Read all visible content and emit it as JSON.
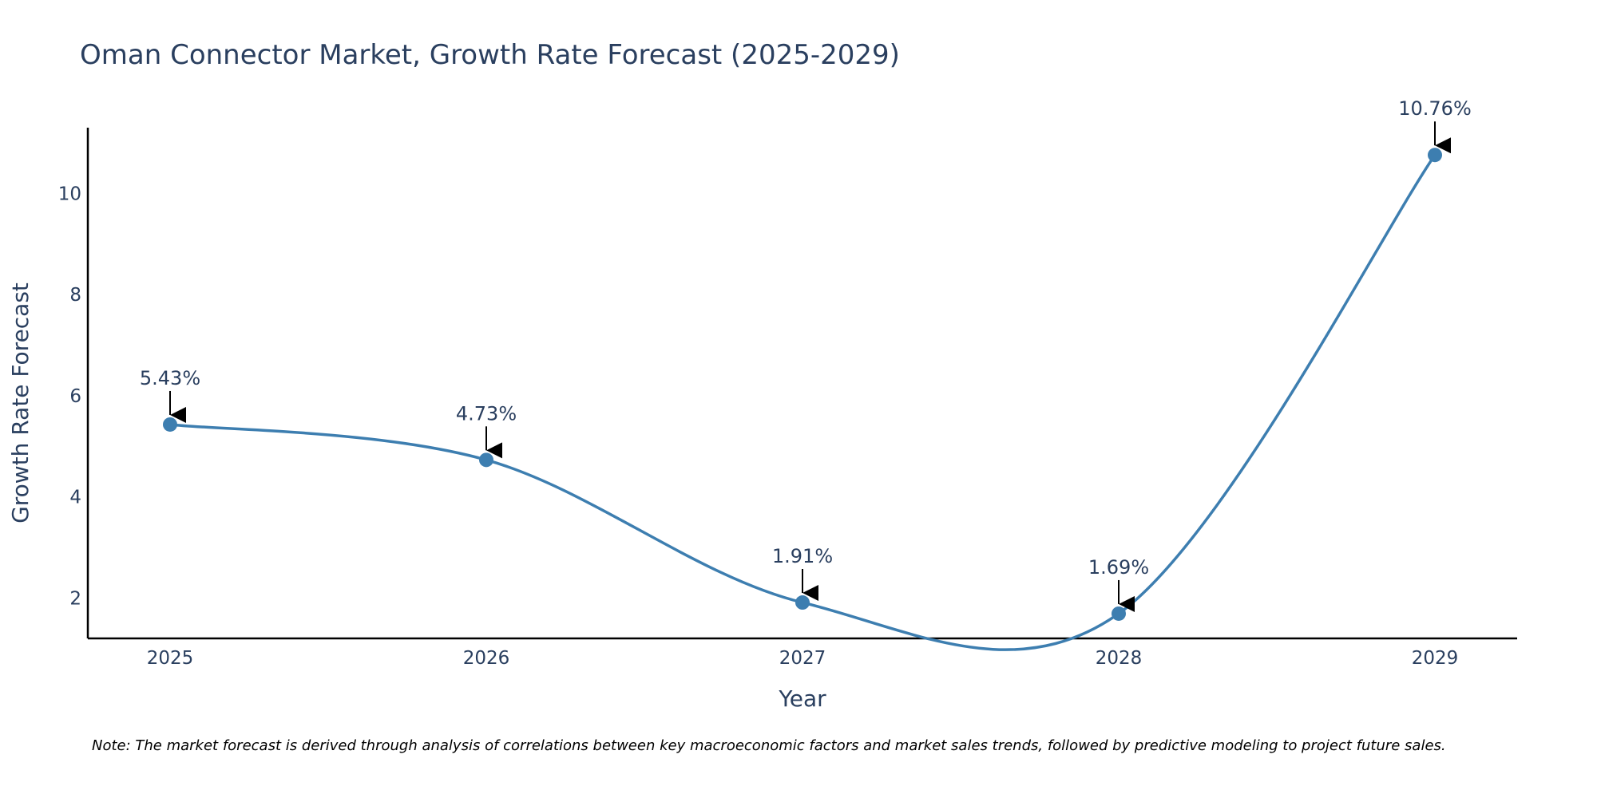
{
  "chart_data": {
    "type": "line",
    "title": "Oman Connector Market, Growth Rate Forecast (2025-2029)",
    "xlabel": "Year",
    "ylabel": "Growth Rate Forecast",
    "categories": [
      "2025",
      "2026",
      "2027",
      "2028",
      "2029"
    ],
    "series": [
      {
        "name": "Growth Rate Forecast",
        "values": [
          5.43,
          4.73,
          1.91,
          1.69,
          10.76
        ],
        "labels": [
          "5.43%",
          "4.73%",
          "1.91%",
          "1.69%",
          "10.76%"
        ],
        "color": "#3d7eb0"
      }
    ],
    "ylim": [
      1.2,
      11.3
    ],
    "yticks": [
      2,
      4,
      6,
      8,
      10
    ],
    "grid": false,
    "legend": "none",
    "line_shape": "spline",
    "note": "Note: The market forecast is derived through analysis of correlations between key macroeconomic factors and market sales trends, followed by predictive modeling to project future sales."
  },
  "colors": {
    "text": "#2a3f5f",
    "axis": "#000000",
    "line": "#3d7eb0",
    "background": "#ffffff"
  }
}
